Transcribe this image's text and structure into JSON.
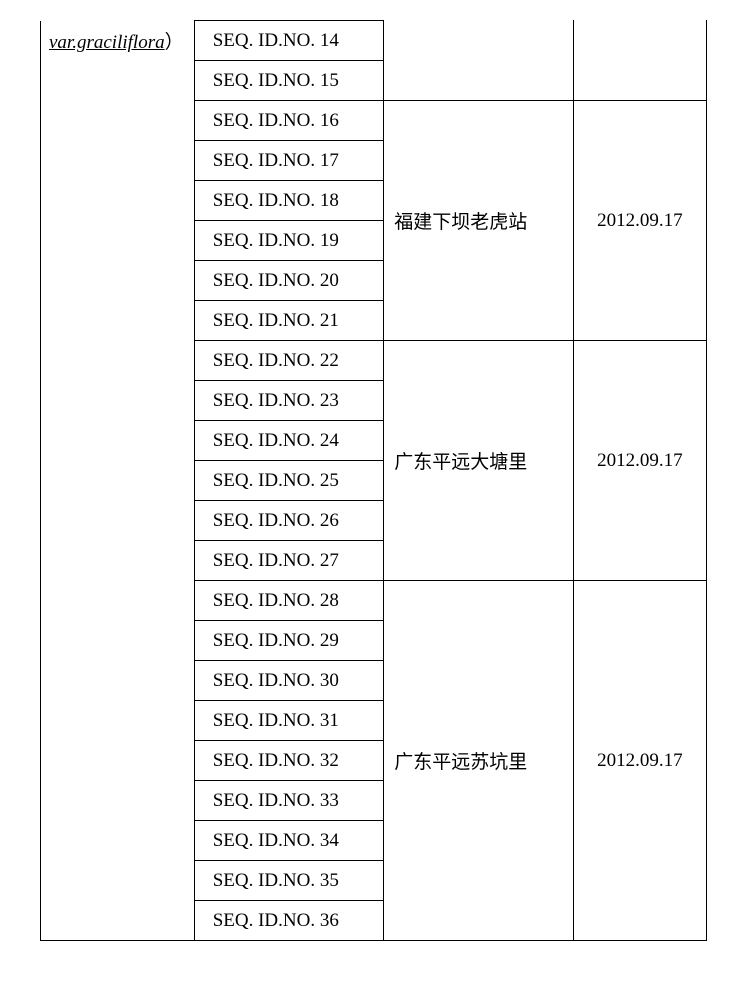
{
  "species_label": "var.graciliflora",
  "species_paren": "）",
  "groups": [
    {
      "location": "",
      "date": "",
      "open_top": true,
      "seq": [
        "SEQ. ID.NO. 14",
        "SEQ. ID.NO. 15"
      ]
    },
    {
      "location": "福建下坝老虎站",
      "date": "2012.09.17",
      "open_top": false,
      "seq": [
        "SEQ. ID.NO. 16",
        "SEQ. ID.NO. 17",
        "SEQ. ID.NO. 18",
        "SEQ. ID.NO. 19",
        "SEQ. ID.NO. 20",
        "SEQ. ID.NO. 21"
      ]
    },
    {
      "location": "广东平远大塘里",
      "date": "2012.09.17",
      "open_top": false,
      "seq": [
        "SEQ. ID.NO. 22",
        "SEQ. ID.NO. 23",
        "SEQ. ID.NO. 24",
        "SEQ. ID.NO. 25",
        "SEQ. ID.NO. 26",
        "SEQ. ID.NO. 27"
      ]
    },
    {
      "location": "广东平远苏坑里",
      "date": "2012.09.17",
      "open_top": false,
      "seq": [
        "SEQ. ID.NO. 28",
        "SEQ. ID.NO. 29",
        "SEQ. ID.NO. 30",
        "SEQ. ID.NO. 31",
        "SEQ. ID.NO. 32",
        "SEQ. ID.NO. 33",
        "SEQ. ID.NO. 34",
        "SEQ. ID.NO. 35",
        "SEQ. ID.NO. 36"
      ]
    }
  ]
}
